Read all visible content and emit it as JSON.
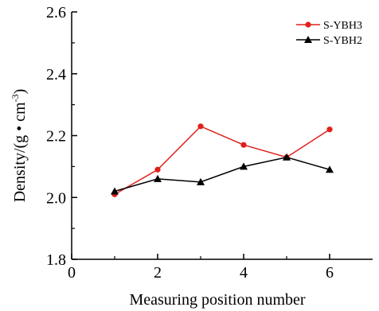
{
  "chart_data": {
    "type": "line",
    "title": "",
    "xlabel": "Measuring position number",
    "ylabel": {
      "main": "Density/(g • cm",
      "sup": "-3",
      "close": ")"
    },
    "x": [
      1,
      2,
      3,
      4,
      5,
      6
    ],
    "xlim": [
      0,
      7
    ],
    "ylim": [
      1.8,
      2.6
    ],
    "xticks": [
      "0",
      "2",
      "4",
      "6"
    ],
    "yticks": [
      "1.8",
      "2.0",
      "2.2",
      "2.4",
      "2.6"
    ],
    "grid": false,
    "legend_position": "top-right",
    "series": [
      {
        "name": "S-YBH3",
        "color": "#e0201b",
        "marker": "circle",
        "values": [
          2.01,
          2.09,
          2.23,
          2.17,
          2.13,
          2.22
        ]
      },
      {
        "name": "S-YBH2",
        "color": "#000000",
        "marker": "triangle",
        "values": [
          2.02,
          2.06,
          2.05,
          2.1,
          2.13,
          2.09
        ]
      }
    ]
  }
}
